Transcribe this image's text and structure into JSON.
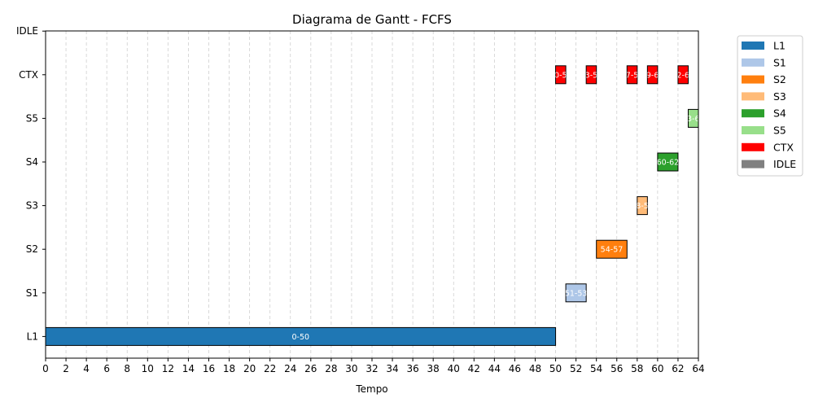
{
  "chart_data": {
    "type": "gantt",
    "title": "Diagrama de Gantt - FCFS",
    "xlabel": "Tempo",
    "ylabel": "",
    "xlim": [
      0,
      64
    ],
    "xticks": [
      0,
      2,
      4,
      6,
      8,
      10,
      12,
      14,
      16,
      18,
      20,
      22,
      24,
      26,
      28,
      30,
      32,
      34,
      36,
      38,
      40,
      42,
      44,
      46,
      48,
      50,
      52,
      54,
      56,
      58,
      60,
      62,
      64
    ],
    "rows": [
      "L1",
      "S1",
      "S2",
      "S3",
      "S4",
      "S5",
      "CTX",
      "IDLE"
    ],
    "grid": "vertical dashed",
    "legend_position": "outside right, top",
    "colors": {
      "L1": "#1f77b4",
      "S1": "#aec7e8",
      "S2": "#ff7f0e",
      "S3": "#ffbb78",
      "S4": "#2ca02c",
      "S5": "#98df8a",
      "CTX": "#ff0000",
      "IDLE": "#808080"
    },
    "legend": [
      "L1",
      "S1",
      "S2",
      "S3",
      "S4",
      "S5",
      "CTX",
      "IDLE"
    ],
    "tasks": [
      {
        "row": "L1",
        "start": 0,
        "end": 50,
        "label": "0-50"
      },
      {
        "row": "CTX",
        "start": 50,
        "end": 51,
        "label": "50-51"
      },
      {
        "row": "S1",
        "start": 51,
        "end": 53,
        "label": "51-53"
      },
      {
        "row": "CTX",
        "start": 53,
        "end": 54,
        "label": "53-54"
      },
      {
        "row": "S2",
        "start": 54,
        "end": 57,
        "label": "54-57"
      },
      {
        "row": "CTX",
        "start": 57,
        "end": 58,
        "label": "57-58"
      },
      {
        "row": "S3",
        "start": 58,
        "end": 59,
        "label": "58-59"
      },
      {
        "row": "CTX",
        "start": 59,
        "end": 60,
        "label": "59-60"
      },
      {
        "row": "S4",
        "start": 60,
        "end": 62,
        "label": "60-62"
      },
      {
        "row": "CTX",
        "start": 62,
        "end": 63,
        "label": "62-63"
      },
      {
        "row": "S5",
        "start": 63,
        "end": 64,
        "label": "63-64"
      }
    ]
  }
}
